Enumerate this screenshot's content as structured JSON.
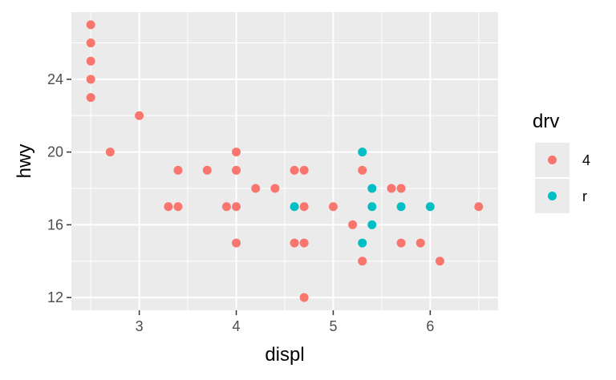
{
  "chart_data": {
    "type": "scatter",
    "xlabel": "displ",
    "ylabel": "hwy",
    "xlim": [
      2.3,
      6.7
    ],
    "ylim": [
      11.3,
      27.7
    ],
    "x_ticks": [
      3,
      4,
      5,
      6
    ],
    "y_ticks": [
      12,
      16,
      20,
      24
    ],
    "grid": true,
    "legend": {
      "title": "drv",
      "position": "right",
      "entries": [
        {
          "label": "4",
          "color": "#F8766D"
        },
        {
          "label": "r",
          "color": "#00BFC4"
        }
      ]
    },
    "series": [
      {
        "name": "4",
        "color": "#F8766D",
        "points": [
          [
            2.5,
            27
          ],
          [
            2.5,
            26
          ],
          [
            2.5,
            25
          ],
          [
            2.5,
            24
          ],
          [
            2.5,
            23
          ],
          [
            2.7,
            20
          ],
          [
            3.0,
            22
          ],
          [
            3.3,
            17
          ],
          [
            3.4,
            17
          ],
          [
            3.4,
            19
          ],
          [
            3.7,
            19
          ],
          [
            3.9,
            17
          ],
          [
            4.0,
            17
          ],
          [
            4.0,
            15
          ],
          [
            4.0,
            19
          ],
          [
            4.0,
            20
          ],
          [
            4.2,
            18
          ],
          [
            4.4,
            18
          ],
          [
            4.6,
            19
          ],
          [
            4.6,
            15
          ],
          [
            4.7,
            19
          ],
          [
            4.7,
            17
          ],
          [
            4.7,
            15
          ],
          [
            4.7,
            12
          ],
          [
            5.0,
            17
          ],
          [
            5.2,
            16
          ],
          [
            5.3,
            19
          ],
          [
            5.3,
            14
          ],
          [
            5.6,
            18
          ],
          [
            5.7,
            18
          ],
          [
            5.7,
            15
          ],
          [
            5.9,
            15
          ],
          [
            6.1,
            14
          ],
          [
            6.5,
            17
          ]
        ]
      },
      {
        "name": "r",
        "color": "#00BFC4",
        "points": [
          [
            4.6,
            17
          ],
          [
            5.3,
            20
          ],
          [
            5.3,
            15
          ],
          [
            5.4,
            18
          ],
          [
            5.4,
            17
          ],
          [
            5.4,
            16
          ],
          [
            5.7,
            17
          ],
          [
            6.0,
            17
          ]
        ]
      }
    ]
  }
}
